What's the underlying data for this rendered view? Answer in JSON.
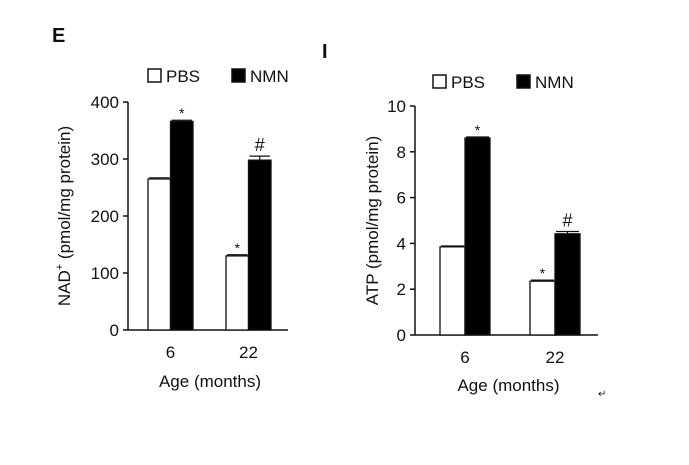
{
  "chart_data": [
    {
      "panel_label": "E",
      "type": "bar",
      "categories": [
        "6",
        "22"
      ],
      "series": [
        {
          "name": "PBS",
          "values": [
            265,
            130
          ],
          "errors": [
            2,
            2
          ],
          "color": "#ffffff",
          "annotations": [
            "",
            "*"
          ]
        },
        {
          "name": "NMN",
          "values": [
            366,
            298
          ],
          "errors": [
            2,
            7
          ],
          "color": "#000000",
          "annotations": [
            "*",
            "#"
          ]
        }
      ],
      "xlabel": "Age (months)",
      "ylabel_main": "NAD",
      "ylabel_sup": "+",
      "ylabel_rest": " (pmol/mg protein)",
      "ylim": [
        0,
        400
      ],
      "yticks": [
        "0",
        "100",
        "200",
        "300",
        "400"
      ],
      "legend": "top"
    },
    {
      "panel_label": "I",
      "type": "bar",
      "categories": [
        "6",
        "22"
      ],
      "series": [
        {
          "name": "PBS",
          "values": [
            3.85,
            2.35
          ],
          "errors": [
            0.04,
            0.05
          ],
          "color": "#ffffff",
          "annotations": [
            "",
            "*"
          ]
        },
        {
          "name": "NMN",
          "values": [
            8.6,
            4.42
          ],
          "errors": [
            0.05,
            0.1
          ],
          "color": "#000000",
          "annotations": [
            "*",
            "#"
          ]
        }
      ],
      "xlabel": "Age (months)",
      "ylabel": "ATP (pmol/mg protein)",
      "ylim": [
        0,
        10
      ],
      "yticks": [
        "0",
        "2",
        "4",
        "6",
        "8",
        "10"
      ],
      "legend": "top"
    }
  ]
}
